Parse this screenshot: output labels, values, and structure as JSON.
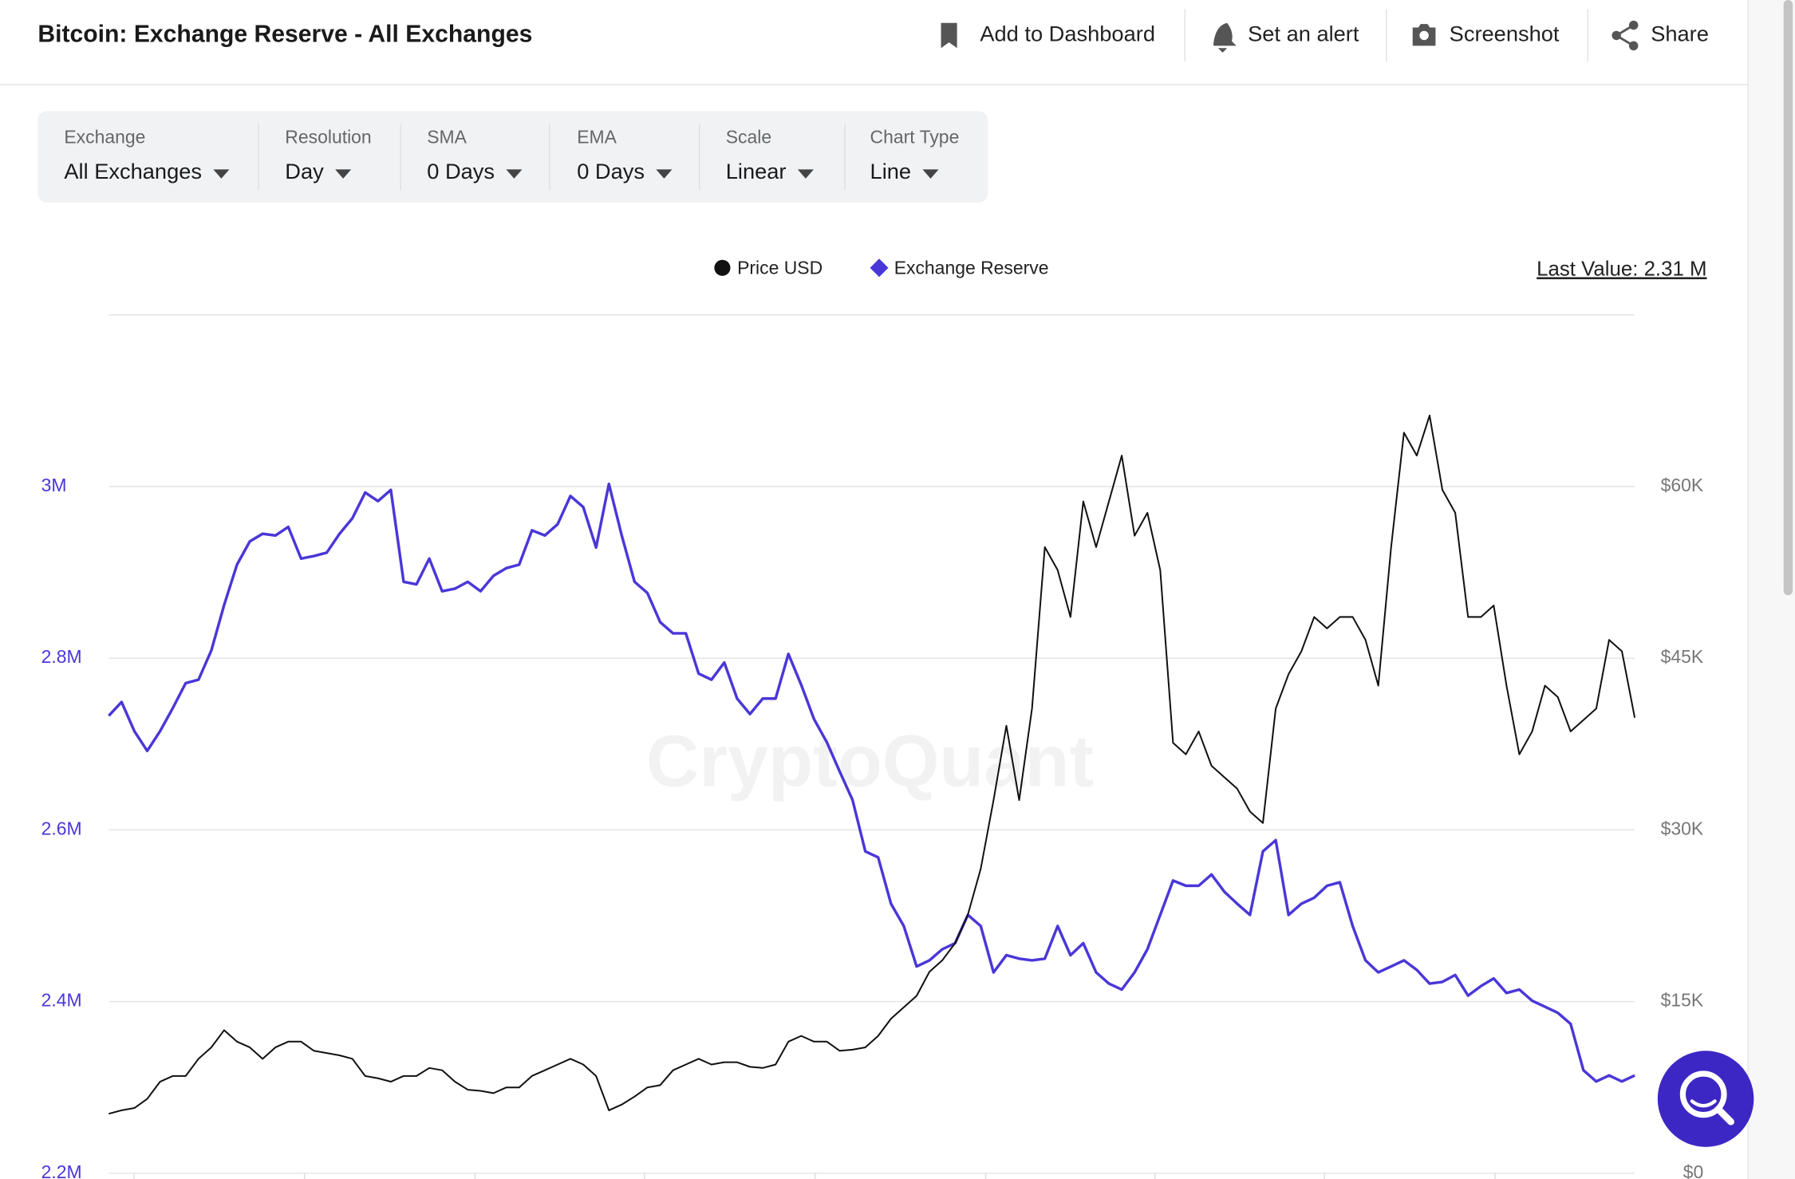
{
  "header": {
    "title": "Bitcoin: Exchange Reserve - All Exchanges",
    "actions": [
      "Add to Dashboard",
      "Set an alert",
      "Screenshot",
      "Share"
    ]
  },
  "filters": [
    {
      "label": "Exchange",
      "value": "All Exchanges"
    },
    {
      "label": "Resolution",
      "value": "Day"
    },
    {
      "label": "SMA",
      "value": "0 Days"
    },
    {
      "label": "EMA",
      "value": "0 Days"
    },
    {
      "label": "Scale",
      "value": "Linear"
    },
    {
      "label": "Chart Type",
      "value": "Line"
    }
  ],
  "chart_data": {
    "type": "line",
    "annotation": "Last Value: 2.31 M",
    "watermark": "CryptoQuant",
    "grid": true,
    "ylim": [
      2200000,
      3200000
    ],
    "yticks": [
      {
        "value": 2200000,
        "label": "2.2M"
      },
      {
        "value": 2400000,
        "label": "2.4M"
      },
      {
        "value": 2600000,
        "label": "2.6M"
      },
      {
        "value": 2800000,
        "label": "2.8M"
      },
      {
        "value": 3000000,
        "label": "3M"
      }
    ],
    "y2lim": [
      0,
      75000
    ],
    "y2ticks": [
      {
        "value": 0,
        "label": "$0"
      },
      {
        "value": 15000,
        "label": "$15K"
      },
      {
        "value": 30000,
        "label": "$30K"
      },
      {
        "value": 45000,
        "label": "$45K"
      },
      {
        "value": 60000,
        "label": "$60K"
      }
    ],
    "series": [
      {
        "name": "Price USD",
        "color": "#111111",
        "axis": "y2",
        "values": [
          5200,
          5500,
          5700,
          6500,
          8000,
          8500,
          8500,
          10000,
          11000,
          12500,
          11500,
          11000,
          10000,
          11000,
          11500,
          11500,
          10700,
          10500,
          10300,
          10000,
          8500,
          8300,
          8000,
          8500,
          8500,
          9200,
          9000,
          8000,
          7300,
          7200,
          7000,
          7500,
          7500,
          8500,
          9000,
          9500,
          10000,
          9500,
          8500,
          5500,
          6000,
          6700,
          7500,
          7700,
          9000,
          9500,
          10000,
          9500,
          9700,
          9700,
          9300,
          9200,
          9500,
          11500,
          12000,
          11500,
          11500,
          10700,
          10800,
          11000,
          12000,
          13500,
          14500,
          15500,
          17600,
          18600,
          20100,
          22600,
          26600,
          32600,
          39100,
          32600,
          40600,
          54700,
          52700,
          48600,
          58700,
          54700,
          58700,
          62700,
          55700,
          57700,
          52700,
          37600,
          36600,
          38600,
          35600,
          34600,
          33600,
          31600,
          30600,
          40600,
          43600,
          45600,
          48600,
          47600,
          48600,
          48600,
          46600,
          42600,
          54700,
          64700,
          62700,
          66200,
          59700,
          57700,
          48600,
          48600,
          49600,
          42600,
          36600,
          38600,
          42600,
          41600,
          38600,
          39600,
          40600,
          46600,
          45600,
          39800
        ]
      },
      {
        "name": "Exchange Reserve",
        "color": "#4a37d8",
        "values": [
          2733000,
          2749000,
          2715000,
          2692000,
          2715000,
          2742000,
          2771000,
          2775000,
          2809000,
          2862000,
          2909000,
          2936000,
          2945000,
          2943000,
          2953000,
          2916000,
          2919000,
          2923000,
          2945000,
          2963000,
          2993000,
          2983000,
          2996000,
          2889000,
          2886000,
          2916000,
          2878000,
          2881000,
          2889000,
          2878000,
          2896000,
          2905000,
          2909000,
          2949000,
          2943000,
          2956000,
          2989000,
          2976000,
          2929000,
          3003000,
          2943000,
          2889000,
          2876000,
          2842000,
          2829000,
          2829000,
          2782000,
          2775000,
          2795000,
          2753000,
          2735000,
          2753000,
          2753000,
          2805000,
          2769000,
          2729000,
          2702000,
          2668000,
          2635000,
          2575000,
          2568000,
          2514000,
          2488000,
          2441000,
          2448000,
          2461000,
          2468000,
          2501000,
          2488000,
          2434000,
          2454000,
          2450000,
          2448000,
          2450000,
          2488000,
          2454000,
          2468000,
          2434000,
          2421000,
          2414000,
          2434000,
          2461000,
          2501000,
          2541000,
          2535000,
          2535000,
          2548000,
          2528000,
          2514000,
          2501000,
          2575000,
          2588000,
          2501000,
          2514000,
          2521000,
          2535000,
          2539000,
          2488000,
          2448000,
          2434000,
          2441000,
          2448000,
          2437000,
          2421000,
          2423000,
          2431000,
          2407000,
          2418000,
          2427000,
          2410000,
          2414000,
          2401000,
          2394000,
          2387000,
          2374000,
          2320000,
          2307000,
          2314000,
          2307000,
          2314000
        ]
      }
    ]
  }
}
